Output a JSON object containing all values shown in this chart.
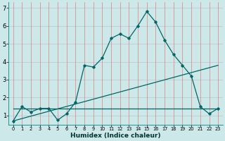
{
  "xlabel": "Humidex (Indice chaleur)",
  "background_color": "#cce8e8",
  "grid_color_h": "#c0c0d0",
  "grid_color_v": "#e08080",
  "line_color": "#006666",
  "xlim": [
    -0.5,
    23.5
  ],
  "ylim": [
    0.5,
    7.3
  ],
  "x_ticks": [
    0,
    1,
    2,
    3,
    4,
    5,
    6,
    7,
    8,
    9,
    10,
    11,
    12,
    13,
    14,
    15,
    16,
    17,
    18,
    19,
    20,
    21,
    22,
    23
  ],
  "y_ticks": [
    1,
    2,
    3,
    4,
    5,
    6,
    7
  ],
  "line1_x": [
    0,
    1,
    2,
    3,
    4,
    5,
    6,
    7,
    8,
    9,
    10,
    11,
    12,
    13,
    14,
    15,
    16,
    17,
    18,
    19,
    20,
    21,
    22,
    23
  ],
  "line1_y": [
    0.7,
    1.5,
    1.2,
    1.4,
    1.4,
    0.75,
    1.1,
    1.75,
    3.8,
    3.7,
    4.2,
    5.3,
    5.55,
    5.3,
    6.0,
    6.8,
    6.2,
    5.2,
    4.4,
    3.8,
    3.2,
    1.5,
    1.1,
    1.4
  ],
  "line2_x": [
    0,
    23
  ],
  "line2_y": [
    1.4,
    1.4
  ],
  "line3_x": [
    0,
    23
  ],
  "line3_y": [
    0.7,
    3.8
  ],
  "xlabel_fontsize": 6.5,
  "xlabel_color": "#003333",
  "ytick_fontsize": 6,
  "xtick_fontsize": 4.8
}
